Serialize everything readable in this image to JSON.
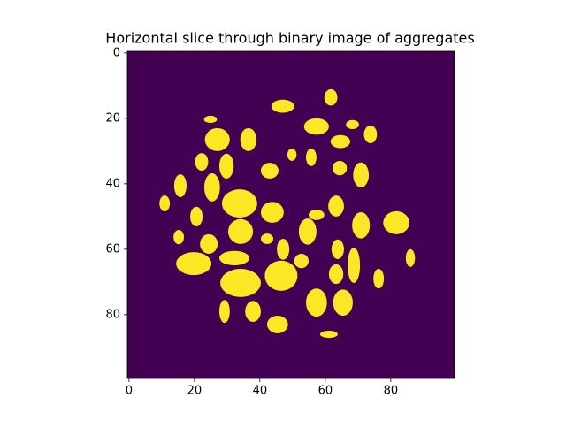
{
  "chart_data": {
    "type": "image",
    "title": "Horizontal slice through binary image of aggregates",
    "background_color": "#440154",
    "foreground_color": "#fde725",
    "xlim": [
      -0.5,
      99.5
    ],
    "ylim": [
      99.5,
      -0.5
    ],
    "xticks": [
      0,
      20,
      40,
      60,
      80
    ],
    "yticks": [
      0,
      20,
      40,
      60,
      80
    ],
    "blobs": [
      [
        27,
        26.5,
        3.8,
        3.5
      ],
      [
        36.5,
        26.5,
        2.5,
        3.5
      ],
      [
        47,
        16.3,
        3.5,
        2
      ],
      [
        57.3,
        22.5,
        3.8,
        2.5
      ],
      [
        61.7,
        13.6,
        2,
        2.5
      ],
      [
        64.6,
        27.1,
        3,
        2
      ],
      [
        73.8,
        24.9,
        2,
        2.7
      ],
      [
        22.2,
        33.3,
        2,
        2.7
      ],
      [
        29.8,
        34.6,
        2.2,
        3.8
      ],
      [
        43,
        36,
        2.7,
        2.4
      ],
      [
        49.8,
        31.1,
        1.4,
        1.9
      ],
      [
        55.7,
        31.9,
        1.6,
        2.7
      ],
      [
        64.4,
        35.2,
        2.2,
        2.2
      ],
      [
        70.9,
        37.3,
        2.4,
        3.8
      ],
      [
        25.4,
        41.1,
        2.4,
        4.3
      ],
      [
        15.7,
        40.6,
        1.9,
        3.5
      ],
      [
        33.8,
        46,
        5.4,
        4.3
      ],
      [
        43.8,
        48.7,
        3.5,
        3.2
      ],
      [
        10.9,
        46,
        1.6,
        2.4
      ],
      [
        20.6,
        50,
        1.9,
        3
      ],
      [
        34.1,
        54.6,
        3.8,
        3.8
      ],
      [
        54.6,
        54.6,
        2.7,
        4
      ],
      [
        57.3,
        49.5,
        2.4,
        1.6
      ],
      [
        63.3,
        46.8,
        2.4,
        3.2
      ],
      [
        70.9,
        52.7,
        2.7,
        4
      ],
      [
        81.7,
        51.9,
        4,
        3.5
      ],
      [
        24.4,
        58.4,
        2.7,
        3
      ],
      [
        15.2,
        56.3,
        1.6,
        2.2
      ],
      [
        42.2,
        56.8,
        1.9,
        1.6
      ],
      [
        47.1,
        60,
        1.9,
        3.2
      ],
      [
        32.2,
        62.7,
        4.6,
        2.2
      ],
      [
        19.8,
        64.4,
        5.4,
        3.5
      ],
      [
        34.1,
        70.3,
        6.2,
        4.3
      ],
      [
        46.5,
        68.1,
        5,
        4.6
      ],
      [
        52.7,
        63.6,
        2.2,
        2.2
      ],
      [
        63.8,
        60,
        1.9,
        3
      ],
      [
        63.3,
        67.6,
        2.2,
        3
      ],
      [
        68.7,
        64.9,
        1.9,
        5.4
      ],
      [
        76.3,
        69,
        1.6,
        3
      ],
      [
        57.3,
        76.3,
        3.2,
        4.3
      ],
      [
        65.4,
        76.3,
        3,
        4
      ],
      [
        37.9,
        79,
        2.4,
        3.2
      ],
      [
        45.4,
        83,
        3.2,
        2.7
      ],
      [
        29.2,
        79,
        1.6,
        3.5
      ],
      [
        61.1,
        86,
        2.7,
        1.1
      ],
      [
        86,
        62.7,
        1.4,
        2.7
      ],
      [
        24.9,
        20.3,
        2,
        1.1
      ],
      [
        68.3,
        21.9,
        2,
        1.4
      ]
    ]
  }
}
